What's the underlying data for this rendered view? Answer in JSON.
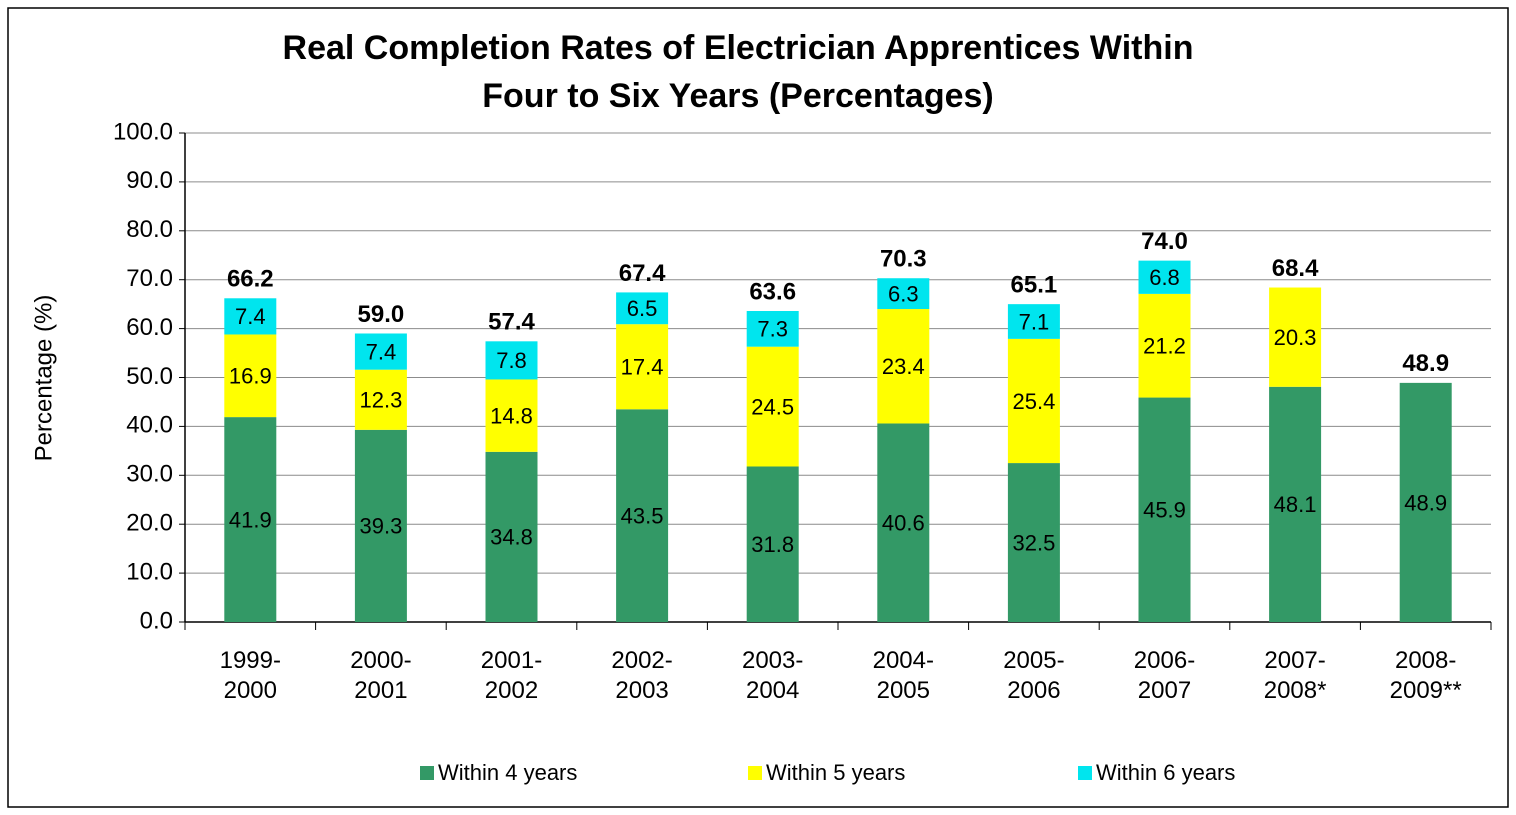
{
  "chart_data": {
    "type": "stacked_bar",
    "title": [
      "Real Completion Rates of Electrician Apprentices Within",
      "Four to Six Years (Percentages)"
    ],
    "y_label": "Percentage (%)",
    "categories": [
      "1999-2000",
      "2000-2001",
      "2001-2002",
      "2002-2003",
      "2003-2004",
      "2004-2005",
      "2005-2006",
      "2006-2007",
      "2007-2008*",
      "2008-2009**"
    ],
    "series": [
      {
        "name": "Within 4 years",
        "color": "#339966",
        "values": [
          41.9,
          39.3,
          34.8,
          43.5,
          31.8,
          40.6,
          32.5,
          45.9,
          48.1,
          48.9
        ]
      },
      {
        "name": "Within 5 years",
        "color": "#ffff00",
        "values": [
          16.9,
          12.3,
          14.8,
          17.4,
          24.5,
          23.4,
          25.4,
          21.2,
          20.3,
          null
        ]
      },
      {
        "name": "Within 6 years",
        "color": "#00e5ee",
        "values": [
          7.4,
          7.4,
          7.8,
          6.5,
          7.3,
          6.3,
          7.1,
          6.8,
          null,
          null
        ]
      }
    ],
    "totals": {
      "values": [
        66.2,
        59.0,
        57.4,
        67.4,
        63.6,
        70.3,
        65.1,
        74.0,
        68.4,
        48.9
      ],
      "value_labels": [
        "66.2",
        "59.0",
        "57.4",
        "67.4",
        "63.6",
        "70.3",
        "65.1",
        "74.0",
        "68.4",
        "48.9"
      ]
    },
    "ylim": [
      0,
      100
    ],
    "yticks": [
      {
        "value": 0,
        "label": "0.0"
      },
      {
        "value": 10,
        "label": "10.0"
      },
      {
        "value": 20,
        "label": "20.0"
      },
      {
        "value": 30,
        "label": "30.0"
      },
      {
        "value": 40,
        "label": "40.0"
      },
      {
        "value": 50,
        "label": "50.0"
      },
      {
        "value": 60,
        "label": "60.0"
      },
      {
        "value": 70,
        "label": "70.0"
      },
      {
        "value": 80,
        "label": "80.0"
      },
      {
        "value": 90,
        "label": "90.0"
      },
      {
        "value": 100,
        "label": "100.0"
      }
    ],
    "grid": true,
    "legend": "bottom"
  }
}
